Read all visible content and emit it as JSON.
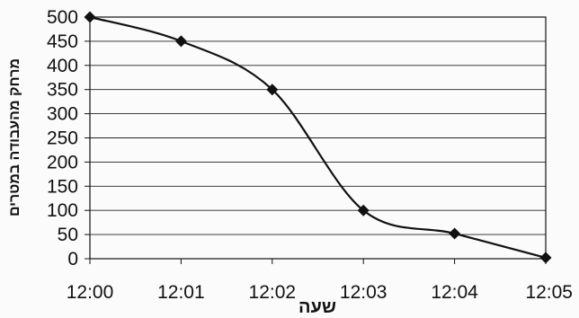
{
  "chart_data": {
    "type": "line",
    "title": "",
    "xlabel": "שעה",
    "ylabel": "מרחק מהעבודה במטרים",
    "categories": [
      "12:00",
      "12:01",
      "12:02",
      "12:03",
      "12:04",
      "12:05"
    ],
    "series": [
      {
        "values": [
          500,
          450,
          350,
          100,
          52,
          2
        ]
      }
    ],
    "ylim": [
      0,
      500
    ],
    "yticks": [
      0,
      50,
      100,
      150,
      200,
      250,
      300,
      350,
      400,
      450,
      500
    ],
    "grid": true,
    "legend": "none",
    "marker": "diamond",
    "smooth": true,
    "colors": {
      "line": "#111111",
      "grid": "#222222",
      "background": "#fbfbfb"
    }
  }
}
